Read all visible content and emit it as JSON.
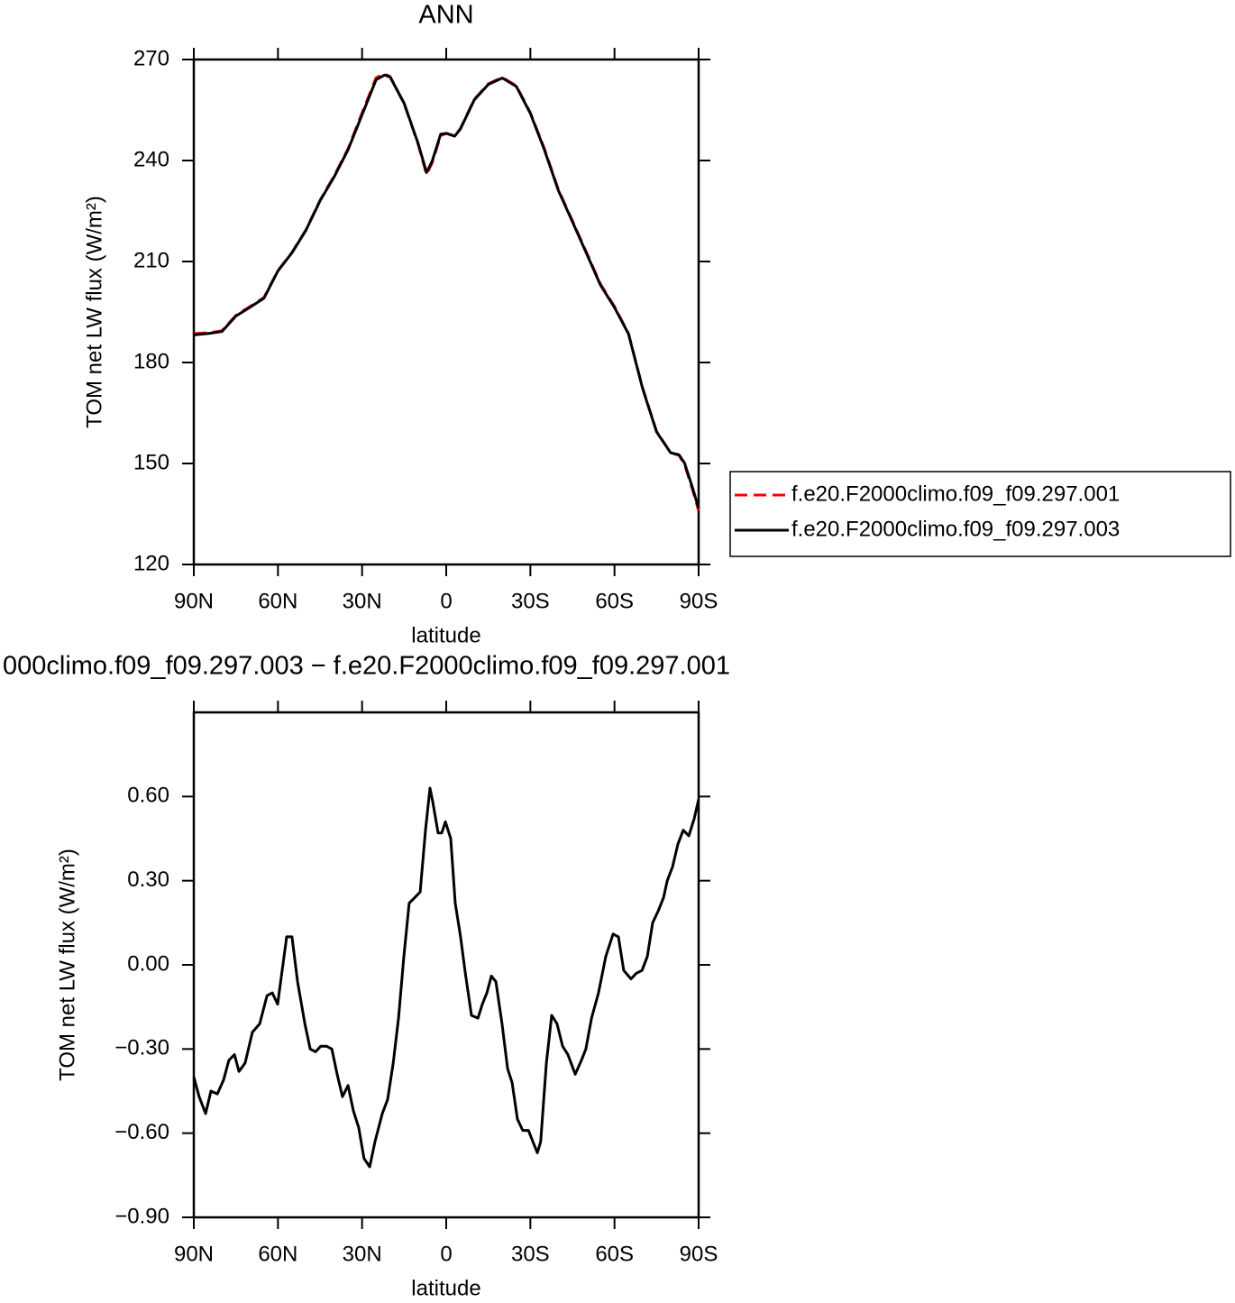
{
  "chart_data": [
    {
      "type": "line",
      "title": "ANN",
      "xlabel": "latitude",
      "ylabel": "TOM net LW flux (W/m²)",
      "x": [
        90,
        85,
        80,
        75,
        70,
        65,
        60,
        55,
        50,
        45,
        40,
        35,
        30,
        25,
        22,
        20,
        15,
        10,
        7,
        5,
        2,
        0,
        -3,
        -5,
        -10,
        -15,
        -20,
        -25,
        -30,
        -35,
        -40,
        -45,
        -50,
        -55,
        -60,
        -65,
        -70,
        -75,
        -80,
        -83,
        -85,
        -88,
        -90
      ],
      "series": [
        {
          "name": "f.e20.F2000climo.f09_f09.297.001",
          "color": "#ff0000",
          "line_style": "dashed",
          "values": [
            188.6,
            188.8,
            189.4,
            194,
            196.6,
            199.3,
            207.3,
            212.7,
            219.4,
            228.2,
            235.4,
            243.5,
            254.2,
            264.6,
            265.8,
            264.9,
            256.9,
            244.8,
            235.8,
            239.3,
            247.4,
            248.0,
            247.4,
            249.4,
            258.2,
            262.8,
            264.7,
            262.2,
            254.2,
            243.5,
            231.4,
            222.1,
            212.7,
            203.3,
            196.6,
            188.6,
            172.5,
            159.6,
            153.2,
            152.4,
            149.7,
            141.7,
            136.0
          ]
        },
        {
          "name": "f.e20.F2000climo.f09_f09.297.003",
          "color": "#000000",
          "line_style": "solid",
          "values": [
            188.2,
            188.6,
            189.2,
            193.8,
            196.4,
            199.1,
            207.2,
            212.6,
            219.3,
            228.0,
            235.1,
            243.2,
            253.6,
            264.0,
            265.4,
            264.8,
            257.0,
            245.0,
            236.4,
            239.8,
            247.8,
            248.1,
            247.2,
            249.3,
            258.0,
            262.6,
            264.5,
            262.0,
            254.0,
            243.2,
            231.1,
            221.8,
            212.4,
            203.0,
            196.3,
            188.5,
            172.3,
            159.4,
            153.2,
            152.6,
            150.1,
            142.3,
            136.6
          ]
        }
      ],
      "xlim": [
        90,
        -90
      ],
      "xticks": [
        {
          "value": 90,
          "label": "90N"
        },
        {
          "value": 60,
          "label": "60N"
        },
        {
          "value": 30,
          "label": "30N"
        },
        0,
        {
          "value": -30,
          "label": "30S"
        },
        {
          "value": -60,
          "label": "60S"
        },
        {
          "value": -90,
          "label": "90S"
        }
      ],
      "ylim": [
        120,
        270
      ],
      "yticks": [
        120,
        150,
        180,
        210,
        240,
        270
      ],
      "legend": "right"
    },
    {
      "type": "line",
      "title": "000climo.f09_f09.297.003 − f.e20.F2000climo.f09_f09.297.001",
      "xlabel": "latitude",
      "ylabel": "TOM net LW flux (W/m²)",
      "x": [
        90.0,
        88.1,
        85.8,
        83.9,
        81.6,
        79.4,
        77.5,
        75.5,
        73.9,
        71.7,
        69.1,
        66.5,
        63.9,
        62.0,
        60.1,
        58.5,
        56.9,
        55.0,
        53.0,
        50.4,
        48.5,
        46.6,
        44.7,
        42.7,
        40.8,
        38.9,
        37.0,
        35.0,
        33.1,
        31.2,
        29.3,
        27.3,
        25.4,
        22.8,
        20.9,
        18.9,
        17.0,
        15.1,
        13.2,
        11.2,
        9.3,
        7.4,
        5.8,
        4.8,
        2.9,
        1.6,
        0.3,
        -1.6,
        -3.2,
        -5.1,
        -6.8,
        -9.0,
        -11.3,
        -12.9,
        -14.5,
        -16.1,
        -17.7,
        -19.9,
        -21.9,
        -23.5,
        -25.4,
        -27.3,
        -29.3,
        -30.9,
        -32.5,
        -33.7,
        -35.7,
        -37.6,
        -39.5,
        -41.5,
        -43.4,
        -46.0,
        -48.2,
        -49.8,
        -51.8,
        -54.3,
        -56.9,
        -59.5,
        -61.4,
        -63.3,
        -65.9,
        -67.8,
        -69.8,
        -71.7,
        -73.6,
        -75.5,
        -77.5,
        -78.8,
        -80.7,
        -82.6,
        -84.5,
        -86.5,
        -88.4,
        -90.0
      ],
      "values": [
        -0.4,
        -0.47,
        -0.53,
        -0.45,
        -0.46,
        -0.41,
        -0.34,
        -0.32,
        -0.38,
        -0.35,
        -0.24,
        -0.21,
        -0.11,
        -0.1,
        -0.14,
        -0.02,
        0.1,
        0.1,
        -0.06,
        -0.21,
        -0.3,
        -0.31,
        -0.29,
        -0.29,
        -0.3,
        -0.39,
        -0.47,
        -0.43,
        -0.52,
        -0.58,
        -0.69,
        -0.72,
        -0.63,
        -0.53,
        -0.48,
        -0.35,
        -0.19,
        0.03,
        0.22,
        0.24,
        0.26,
        0.48,
        0.63,
        0.58,
        0.47,
        0.47,
        0.51,
        0.45,
        0.22,
        0.1,
        -0.03,
        -0.18,
        -0.19,
        -0.14,
        -0.1,
        -0.04,
        -0.06,
        -0.21,
        -0.37,
        -0.42,
        -0.55,
        -0.59,
        -0.59,
        -0.63,
        -0.67,
        -0.63,
        -0.35,
        -0.18,
        -0.21,
        -0.29,
        -0.32,
        -0.39,
        -0.34,
        -0.3,
        -0.19,
        -0.1,
        0.03,
        0.11,
        0.1,
        -0.02,
        -0.05,
        -0.03,
        -0.02,
        0.03,
        0.15,
        0.19,
        0.24,
        0.3,
        0.35,
        0.43,
        0.48,
        0.46,
        0.52,
        0.59
      ],
      "color": "#000000",
      "xlim": [
        90,
        -90
      ],
      "xticks": [
        {
          "value": 90,
          "label": "90N"
        },
        {
          "value": 60,
          "label": "60N"
        },
        {
          "value": 30,
          "label": "30N"
        },
        0,
        {
          "value": -30,
          "label": "30S"
        },
        {
          "value": -60,
          "label": "60S"
        },
        {
          "value": -90,
          "label": "90S"
        }
      ],
      "ylim": [
        -0.9,
        0.9
      ],
      "yticks": [
        {
          "value": -0.9,
          "label": "−0.90"
        },
        {
          "value": -0.6,
          "label": "−0.60"
        },
        {
          "value": -0.3,
          "label": "−0.30"
        },
        {
          "value": 0,
          "label": "0.00"
        },
        {
          "value": 0.3,
          "label": "0.30"
        },
        {
          "value": 0.6,
          "label": "0.60"
        }
      ]
    }
  ]
}
